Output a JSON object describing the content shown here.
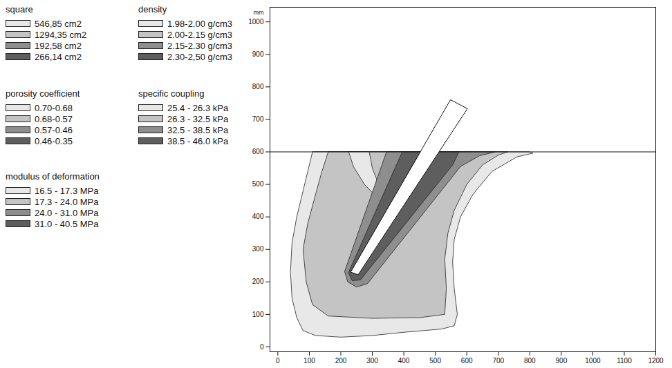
{
  "chart_data": {
    "type": "zones",
    "y_label": "mm",
    "xlim": [
      -25,
      1200
    ],
    "ylim": [
      -15,
      1045
    ],
    "xticks": [
      0,
      100,
      200,
      300,
      400,
      500,
      600,
      700,
      800,
      900,
      1000,
      1100,
      1200
    ],
    "yticks": [
      0,
      100,
      200,
      300,
      400,
      500,
      600,
      700,
      800,
      900,
      1000
    ],
    "ground_level": 600,
    "pile": [
      [
        549,
        760
      ],
      [
        602,
        733
      ],
      [
        255,
        222
      ],
      [
        232,
        230
      ]
    ],
    "zones": [
      {
        "color": "#e8e8e8",
        "polygons": [
          [
            [
              110,
              600
            ],
            [
              100,
              560
            ],
            [
              80,
              480
            ],
            [
              60,
              400
            ],
            [
              45,
              320
            ],
            [
              40,
              230
            ],
            [
              45,
              150
            ],
            [
              60,
              90
            ],
            [
              80,
              50
            ],
            [
              120,
              35
            ],
            [
              200,
              30
            ],
            [
              300,
              35
            ],
            [
              400,
              45
            ],
            [
              520,
              55
            ],
            [
              560,
              65
            ],
            [
              570,
              100
            ],
            [
              560,
              180
            ],
            [
              555,
              260
            ],
            [
              560,
              330
            ],
            [
              580,
              400
            ],
            [
              620,
              470
            ],
            [
              680,
              540
            ],
            [
              760,
              585
            ],
            [
              810,
              596
            ],
            [
              800,
              600
            ]
          ]
        ]
      },
      {
        "color": "#c4c4c4",
        "polygons": [
          [
            [
              160,
              600
            ],
            [
              140,
              540
            ],
            [
              120,
              470
            ],
            [
              95,
              380
            ],
            [
              80,
              300
            ],
            [
              90,
              200
            ],
            [
              110,
              130
            ],
            [
              160,
              95
            ],
            [
              300,
              88
            ],
            [
              450,
              90
            ],
            [
              530,
              100
            ],
            [
              535,
              180
            ],
            [
              530,
              270
            ],
            [
              540,
              350
            ],
            [
              560,
              420
            ],
            [
              600,
              500
            ],
            [
              650,
              560
            ],
            [
              700,
              590
            ],
            [
              730,
              600
            ]
          ]
        ]
      },
      {
        "color": "#e8e8e8",
        "polygons": [
          [
            [
              225,
              600
            ],
            [
              240,
              555
            ],
            [
              275,
              500
            ],
            [
              305,
              470
            ],
            [
              320,
              500
            ],
            [
              300,
              550
            ],
            [
              290,
              600
            ]
          ]
        ]
      },
      {
        "color": "#8e8e8e",
        "polygons": [
          [
            [
              345,
              600
            ],
            [
              212,
              232
            ],
            [
              222,
              200
            ],
            [
              250,
              184
            ],
            [
              285,
              195
            ],
            [
              580,
              555
            ],
            [
              640,
              588
            ],
            [
              690,
              600
            ]
          ]
        ]
      },
      {
        "color": "#5e5e5e",
        "polygons": [
          [
            [
              395,
              600
            ],
            [
              224,
              228
            ],
            [
              236,
              204
            ],
            [
              262,
              206
            ],
            [
              555,
              560
            ],
            [
              575,
              600
            ]
          ]
        ]
      }
    ],
    "legends": [
      {
        "title": "square",
        "entries": [
          "546,85 cm2",
          "1294,35 cm2",
          "192,58 cm2",
          "266,14 cm2"
        ],
        "colors": [
          "#e8e8e8",
          "#c4c4c4",
          "#8e8e8e",
          "#5e5e5e"
        ]
      },
      {
        "title": "density",
        "entries": [
          "1.98-2.00 g/cm3",
          "2.00-2.15 g/cm3",
          "2.15-2.30 g/cm3",
          "2.30-2,50 g/cm3"
        ],
        "colors": [
          "#e8e8e8",
          "#c4c4c4",
          "#8e8e8e",
          "#5e5e5e"
        ]
      },
      {
        "title": "porosity coefficient",
        "entries": [
          "0.70-0.68",
          "0.68-0.57",
          "0.57-0.46",
          "0.46-0.35"
        ],
        "colors": [
          "#e8e8e8",
          "#c4c4c4",
          "#8e8e8e",
          "#5e5e5e"
        ]
      },
      {
        "title": "specific coupling",
        "entries": [
          "25.4 - 26.3 kPa",
          "26.3 - 32.5 kPa",
          "32.5 - 38.5 kPa",
          "38.5 - 46.0 kPa"
        ],
        "colors": [
          "#e8e8e8",
          "#c4c4c4",
          "#8e8e8e",
          "#5e5e5e"
        ]
      },
      {
        "title": "modulus of deformation",
        "entries": [
          "16.5 - 17.3 MPa",
          "17.3 - 24.0 MPa",
          "24.0 - 31.0 MPa",
          "31.0 - 40.5 MPa"
        ],
        "colors": [
          "#e8e8e8",
          "#c4c4c4",
          "#8e8e8e",
          "#5e5e5e"
        ]
      }
    ]
  }
}
